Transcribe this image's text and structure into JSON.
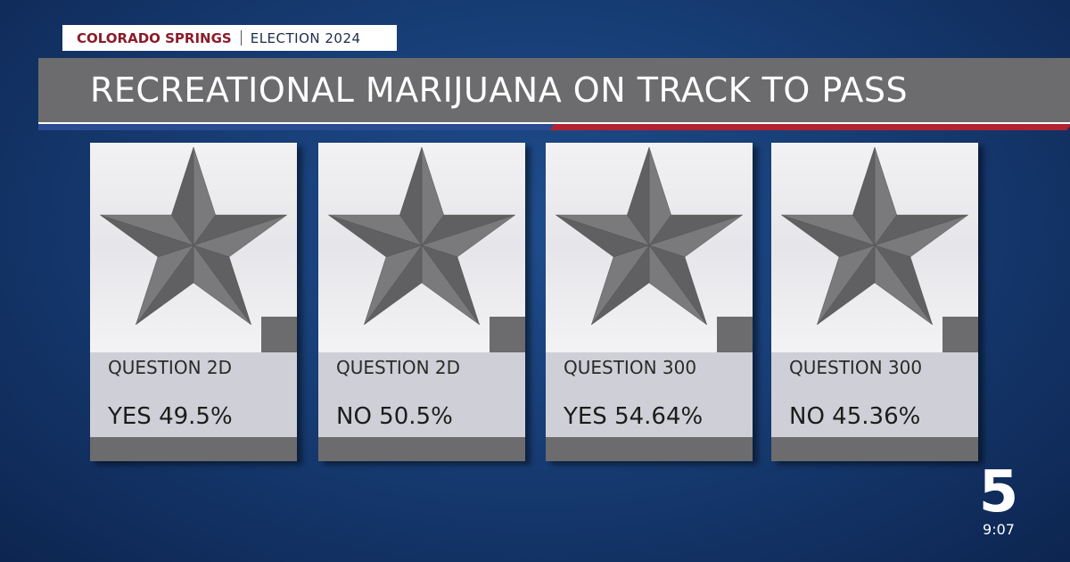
{
  "header": {
    "location": "COLORADO SPRINGS",
    "event": "ELECTION 2024",
    "title": "RECREATIONAL MARIJUANA ON TRACK TO PASS"
  },
  "cards": [
    {
      "question": "QUESTION 2D",
      "result": "YES 49.5%"
    },
    {
      "question": "QUESTION 2D",
      "result": "NO 50.5%"
    },
    {
      "question": "QUESTION 300",
      "result": "YES 54.64%"
    },
    {
      "question": "QUESTION 300",
      "result": "NO 45.36%"
    }
  ],
  "logo": {
    "mark": "5",
    "time": "9:07"
  }
}
